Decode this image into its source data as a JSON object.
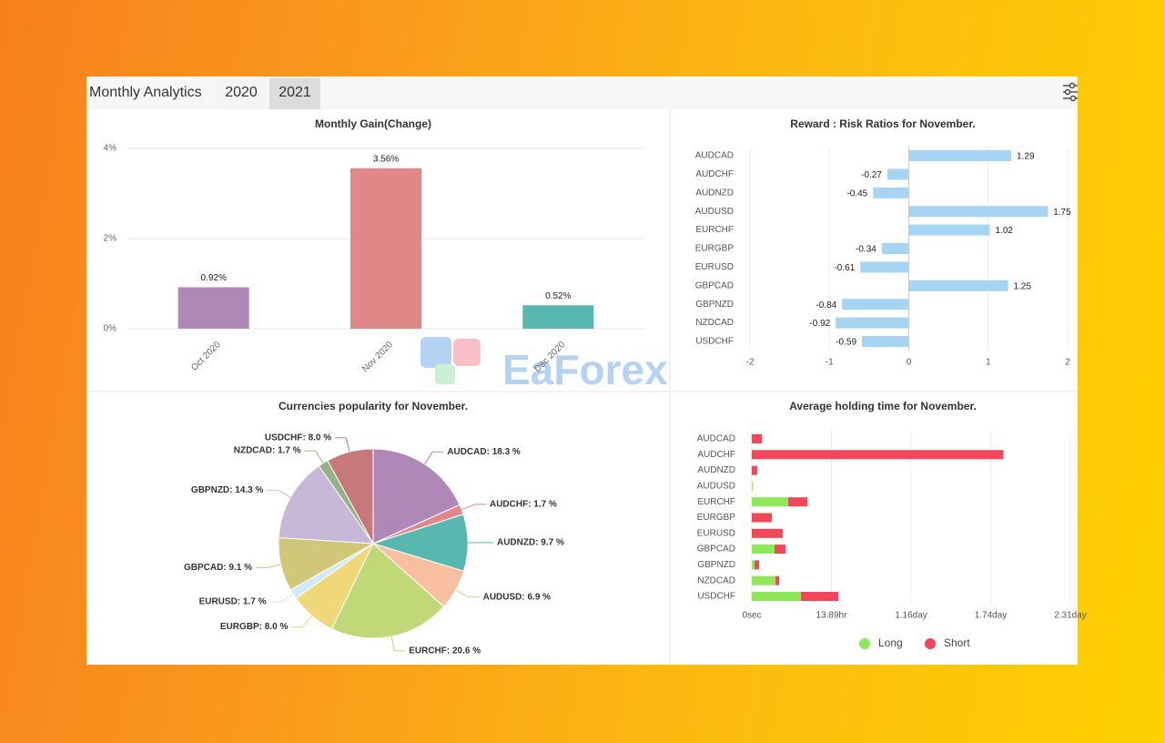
{
  "header": {
    "title": "Monthly Analytics",
    "tabs": [
      "2020",
      "2021"
    ]
  },
  "watermark": "EaForex",
  "chart_data": [
    {
      "type": "bar",
      "title": "Monthly Gain(Change)",
      "categories": [
        "Oct 2020",
        "Nov 2020",
        "Dec 2020"
      ],
      "values": [
        0.92,
        3.56,
        0.52
      ],
      "value_labels": [
        "0.92%",
        "3.56%",
        "0.52%"
      ],
      "colors": [
        "#b088b8",
        "#e08888",
        "#58b8b0"
      ],
      "ylim": [
        0,
        4
      ],
      "yticks": [
        {
          "value": 0,
          "label": "0%"
        },
        {
          "value": 2,
          "label": "2%"
        },
        {
          "value": 4,
          "label": "4%"
        }
      ],
      "grid": true
    },
    {
      "type": "barh",
      "title": "Reward : Risk Ratios for November.",
      "categories": [
        "AUDCAD",
        "AUDCHF",
        "AUDNZD",
        "AUDUSD",
        "EURCHF",
        "EURGBP",
        "EURUSD",
        "GBPCAD",
        "GBPNZD",
        "NZDCAD",
        "USDCHF"
      ],
      "values": [
        1.29,
        -0.27,
        -0.45,
        1.75,
        1.02,
        -0.34,
        -0.61,
        1.25,
        -0.84,
        -0.92,
        -0.59
      ],
      "color": "#a8d4f4",
      "xlim": [
        -2,
        2
      ],
      "xticks": [
        -2,
        -1,
        0,
        1,
        2
      ],
      "grid": true
    },
    {
      "type": "pie",
      "title": "Currencies popularity for November.",
      "values": [
        18.3,
        1.7,
        9.7,
        6.9,
        20.6,
        8.0,
        1.7,
        9.1,
        14.3,
        1.7,
        8.0
      ],
      "value_labels": [
        "AUDCAD: 18.3 %",
        "AUDCHF: 1.7 %",
        "AUDNZD: 9.7 %",
        "AUDUSD: 6.9 %",
        "EURCHF: 20.6 %",
        "EURGBP: 8.0 %",
        "EURUSD: 1.7 %",
        "GBPCAD: 9.1 %",
        "GBPNZD: 14.3 %",
        "NZDCAD: 1.7 %",
        "USDCHF: 8.0 %"
      ],
      "colors": [
        "#b088b8",
        "#e08888",
        "#58b8b0",
        "#f8c0a0",
        "#c0d878",
        "#f0d878",
        "#d0e8f8",
        "#d0c878",
        "#c8b8d8",
        "#98b088",
        "#c87878"
      ]
    },
    {
      "type": "barh",
      "title": "Average holding time for November.",
      "stacked": true,
      "categories": [
        "AUDCAD",
        "AUDCHF",
        "AUDNZD",
        "AUDUSD",
        "EURCHF",
        "EURGBP",
        "EURUSD",
        "GBPCAD",
        "GBPNZD",
        "NZDCAD",
        "USDCHF"
      ],
      "series": [
        {
          "name": "Long",
          "color": "#8ee85a",
          "values": [
            0,
            0,
            0,
            500,
            22900,
            0,
            0,
            14300,
            1700,
            14900,
            30900
          ]
        },
        {
          "name": "Short",
          "color": "#f2475a",
          "values": [
            6300,
            158000,
            3500,
            0,
            12000,
            12600,
            19400,
            6900,
            2900,
            2300,
            23400
          ]
        }
      ],
      "xlim": [
        0,
        200000
      ],
      "xticks": [
        {
          "value": 0,
          "label": "0sec"
        },
        {
          "value": 50000,
          "label": "13.89hr"
        },
        {
          "value": 100000,
          "label": "1.16day"
        },
        {
          "value": 150000,
          "label": "1.74day"
        },
        {
          "value": 200000,
          "label": "2.31day"
        }
      ],
      "grid": true,
      "legend": "bottom"
    }
  ]
}
